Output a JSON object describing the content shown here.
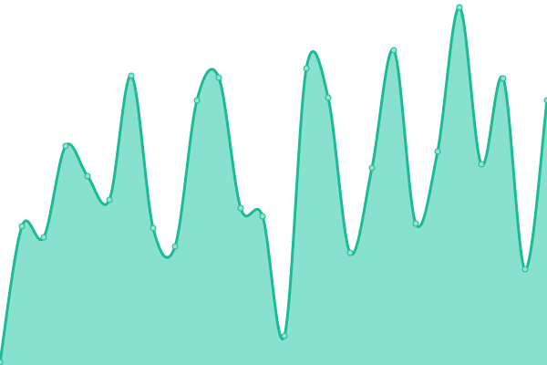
{
  "chart_data": {
    "type": "area",
    "title": "",
    "xlabel": "",
    "ylabel": "",
    "x": [
      0,
      1,
      2,
      3,
      4,
      5,
      6,
      7,
      8,
      9,
      10,
      11,
      12,
      13,
      14,
      15,
      16,
      17,
      18,
      19,
      20,
      21,
      22,
      23,
      24,
      25
    ],
    "values": [
      3,
      152,
      140,
      240,
      207,
      181,
      317,
      150,
      130,
      290,
      315,
      172,
      163,
      32,
      325,
      293,
      123,
      216,
      345,
      155,
      234,
      392,
      220,
      314,
      105,
      290
    ],
    "ylim": [
      0,
      400
    ],
    "grid": false,
    "axes_visible": false,
    "curve": "smooth",
    "markers": true,
    "colors": {
      "line": "#1cba95",
      "fill": "#88e0cf",
      "marker_fill": "#8fe3d2"
    }
  }
}
